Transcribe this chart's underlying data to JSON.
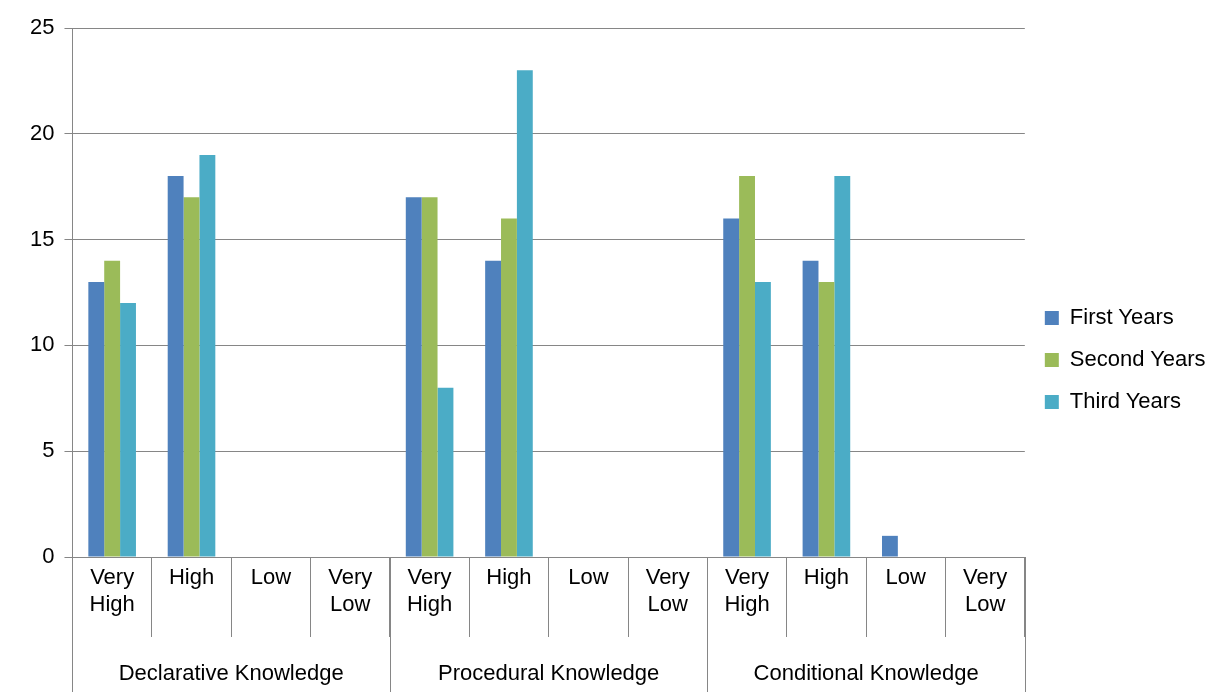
{
  "chart_data": {
    "type": "bar",
    "categories": [
      "Very High",
      "High",
      "Low",
      "Very Low",
      "Very High",
      "High",
      "Low",
      "Very Low",
      "Very High",
      "High",
      "Low",
      "Very Low"
    ],
    "series": [
      {
        "name": "First Years",
        "color": "#4f81bd",
        "values": [
          13,
          18,
          0,
          0,
          17,
          14,
          0,
          0,
          16,
          14,
          1,
          0
        ]
      },
      {
        "name": "Second Years",
        "color": "#9bbb59",
        "values": [
          14,
          17,
          0,
          0,
          17,
          16,
          0,
          0,
          18,
          13,
          0,
          0
        ]
      },
      {
        "name": "Third Years",
        "color": "#4bacc6",
        "values": [
          12,
          19,
          0,
          0,
          8,
          23,
          0,
          0,
          13,
          18,
          0,
          0
        ]
      }
    ],
    "annotations": [
      "Declarative Knowledge",
      "Procedural Knowledge",
      "Conditional Knowledge"
    ],
    "ylim": [
      0,
      25
    ],
    "yticks": [
      0,
      5,
      10,
      15,
      20,
      25
    ],
    "grid": "y",
    "legend": "right"
  }
}
